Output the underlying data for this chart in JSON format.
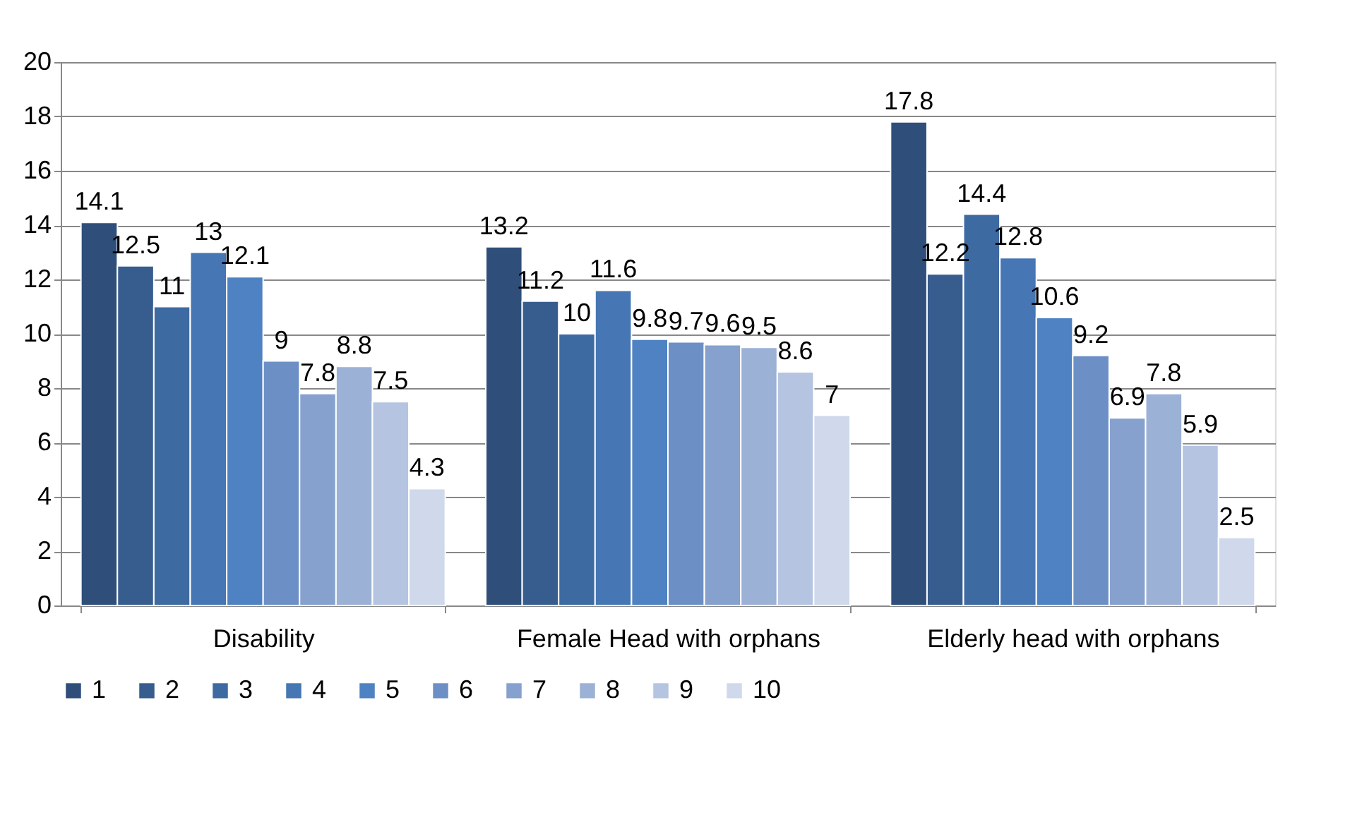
{
  "chart_data": {
    "type": "bar",
    "categories": [
      "Disability",
      "Female Head with orphans",
      "Elderly head with orphans"
    ],
    "series": [
      {
        "name": "1",
        "color": "#2f4f7a",
        "values": [
          14.1,
          13.2,
          17.8
        ]
      },
      {
        "name": "2",
        "color": "#375d8f",
        "values": [
          12.5,
          11.2,
          12.2
        ]
      },
      {
        "name": "3",
        "color": "#3e6aa2",
        "values": [
          11,
          10,
          14.4
        ]
      },
      {
        "name": "4",
        "color": "#4676b3",
        "values": [
          13,
          11.6,
          12.8
        ]
      },
      {
        "name": "5",
        "color": "#4f82c2",
        "values": [
          12.1,
          9.8,
          10.6
        ]
      },
      {
        "name": "6",
        "color": "#6c90c6",
        "values": [
          9,
          9.7,
          9.2
        ]
      },
      {
        "name": "7",
        "color": "#86a1ce",
        "values": [
          7.8,
          9.6,
          6.9
        ]
      },
      {
        "name": "8",
        "color": "#9cb1d6",
        "values": [
          8.8,
          9.5,
          7.8
        ]
      },
      {
        "name": "9",
        "color": "#b5c4e1",
        "values": [
          7.5,
          8.6,
          5.9
        ]
      },
      {
        "name": "10",
        "color": "#cfd9eb",
        "values": [
          4.3,
          7,
          2.5
        ]
      }
    ],
    "ylim": [
      0,
      20
    ],
    "yticks": [
      0,
      2,
      4,
      6,
      8,
      10,
      12,
      14,
      16,
      18,
      20
    ],
    "grid": "y",
    "legend": "bottom",
    "data_labels": true
  }
}
